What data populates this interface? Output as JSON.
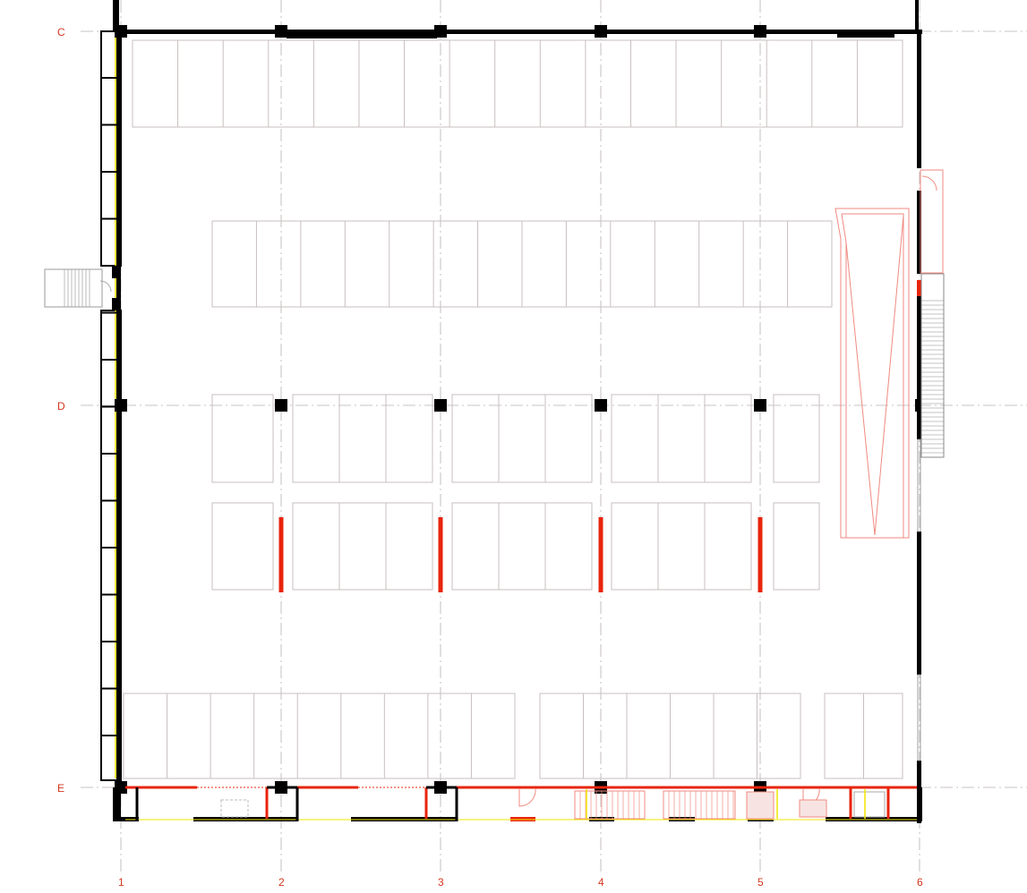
{
  "grid": {
    "rows": [
      "C",
      "D",
      "E"
    ],
    "columns": [
      "1",
      "2",
      "3",
      "4",
      "5",
      "6"
    ]
  },
  "colors": {
    "wall": "#000000",
    "new_wall": "#e8240c",
    "furniture": "#c9bfbf",
    "furniture_red": "#f08a80",
    "grid_line": "#b8b0b0",
    "glazing": "#f2e600",
    "label": "#d4351c"
  }
}
